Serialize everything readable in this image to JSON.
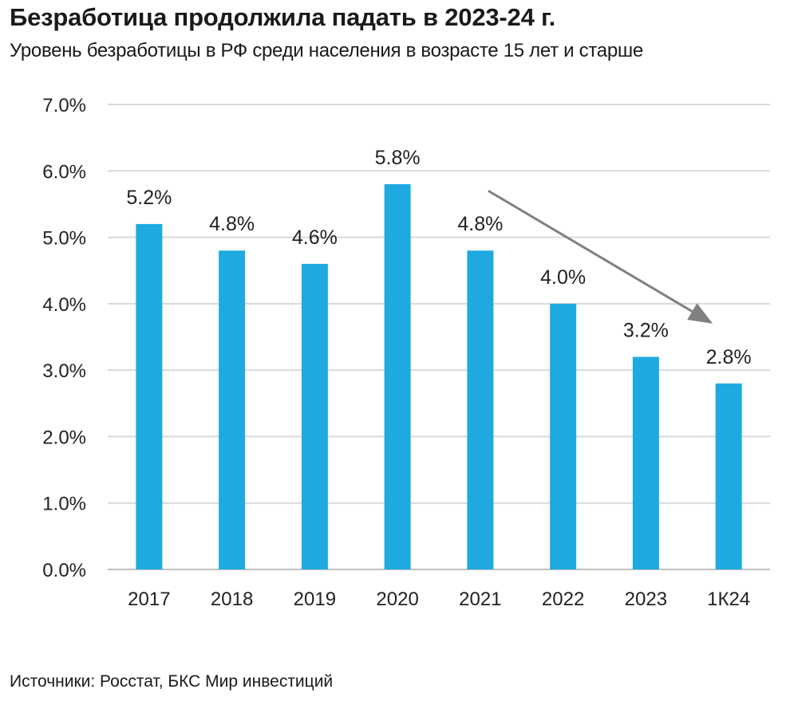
{
  "title": "Безработица продолжила падать в 2023-24 г.",
  "subtitle": "Уровень безработицы в РФ среди населения в возрасте 15 лет и старше",
  "source": "Источники: Росстат, БКС Мир инвестиций",
  "chart_data": {
    "type": "bar",
    "categories": [
      "2017",
      "2018",
      "2019",
      "2020",
      "2021",
      "2022",
      "2023",
      "1К24"
    ],
    "values": [
      5.2,
      4.8,
      4.6,
      5.8,
      4.8,
      4.0,
      3.2,
      2.8
    ],
    "data_labels": [
      "5.2%",
      "4.8%",
      "4.6%",
      "5.8%",
      "4.8%",
      "4.0%",
      "3.2%",
      "2.8%"
    ],
    "ylim": [
      0,
      7
    ],
    "yticks": [
      0,
      1,
      2,
      3,
      4,
      5,
      6,
      7
    ],
    "ytick_labels": [
      "0.0%",
      "1.0%",
      "2.0%",
      "3.0%",
      "4.0%",
      "5.0%",
      "6.0%",
      "7.0%"
    ],
    "grid": true,
    "bar_color": "#1eaae1",
    "grid_color": "#d9d9d9",
    "trend_arrow": {
      "from_category": "2021",
      "to_category": "1К24",
      "color": "#808080"
    }
  }
}
